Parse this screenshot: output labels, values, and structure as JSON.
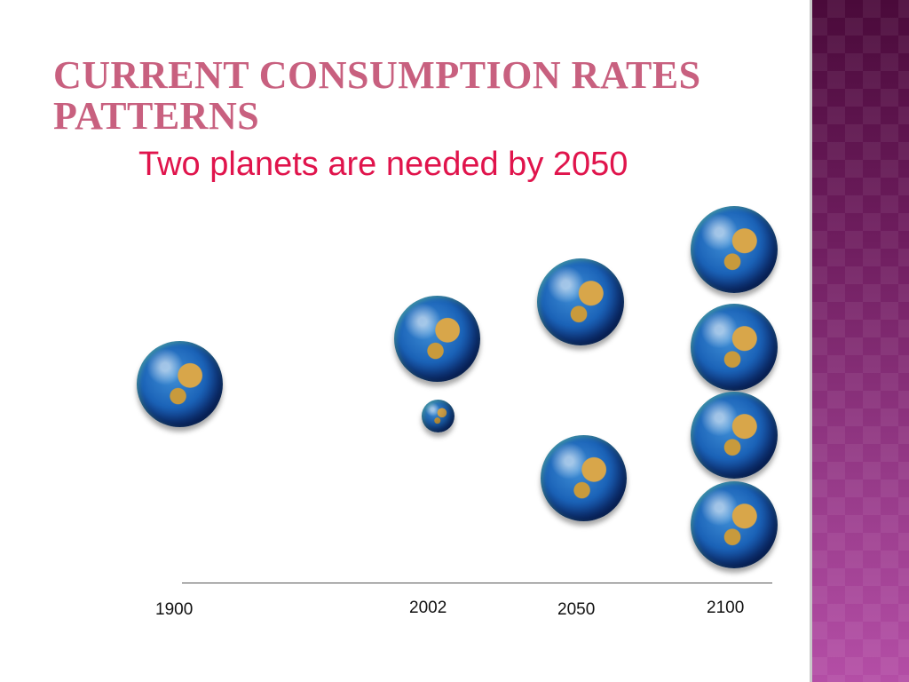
{
  "slide": {
    "title": "CURRENT CONSUMPTION RATES PATTERNS",
    "subtitle": "Two planets are needed by 2050"
  },
  "timeline": {
    "years": [
      "1900",
      "2002",
      "2050",
      "2100"
    ]
  },
  "colors": {
    "title": "#c8607f",
    "subtitle": "#e0144c",
    "side_panel": "#7a2a6b"
  },
  "icons": {
    "globe": "earth-globe-icon"
  }
}
